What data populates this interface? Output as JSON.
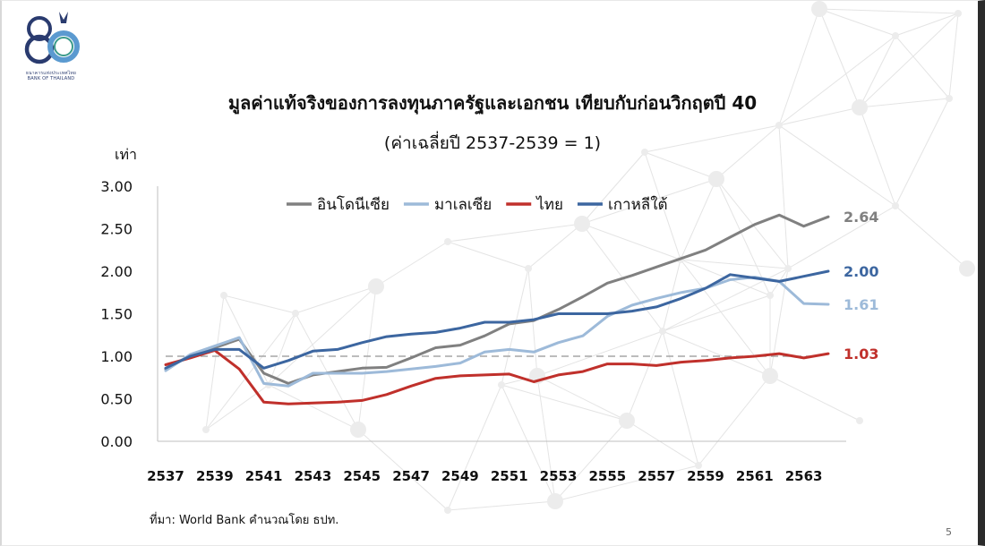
{
  "header": {
    "logo_text": "ธนาคารแห่งประเทศไทย",
    "logo_text_en": "BANK OF THAILAND",
    "logo_number": "80"
  },
  "title": "มูลค่าแท้จริงของการลงทุนภาครัฐและเอกชน เทียบกับก่อนวิกฤตปี 40",
  "subtitle": "(ค่าเฉลี่ยปี 2537-2539 = 1)",
  "unit_label": "เท่า",
  "source": "ที่มา: World Bank คำนวณโดย ธปท.",
  "page_number": "5",
  "chart_data": {
    "type": "line",
    "x": [
      2537,
      2538,
      2539,
      2540,
      2541,
      2542,
      2543,
      2544,
      2545,
      2546,
      2547,
      2548,
      2549,
      2550,
      2551,
      2552,
      2553,
      2554,
      2555,
      2556,
      2557,
      2558,
      2559,
      2560,
      2561,
      2562,
      2563,
      2564
    ],
    "x_tick_labels": [
      "2537",
      "2539",
      "2541",
      "2543",
      "2545",
      "2547",
      "2549",
      "2551",
      "2553",
      "2555",
      "2557",
      "2559",
      "2561",
      "2563"
    ],
    "ylim": [
      0,
      3
    ],
    "y_tick_labels": [
      "0.00",
      "0.50",
      "1.00",
      "1.50",
      "2.00",
      "2.50",
      "3.00"
    ],
    "reference_line": 1.0,
    "legend_position": "top",
    "series": [
      {
        "name": "อินโดนีเซีย",
        "color": "#808080",
        "end_label": "2.64",
        "values": [
          0.85,
          1.01,
          1.1,
          1.2,
          0.8,
          0.68,
          0.78,
          0.82,
          0.86,
          0.87,
          0.98,
          1.1,
          1.13,
          1.24,
          1.38,
          1.42,
          1.55,
          1.7,
          1.86,
          1.95,
          2.05,
          2.15,
          2.25,
          2.4,
          2.55,
          2.66,
          2.53,
          2.64
        ]
      },
      {
        "name": "มาเลเซีย",
        "color": "#9dbad9",
        "end_label": "1.61",
        "values": [
          0.83,
          1.02,
          1.12,
          1.22,
          0.68,
          0.65,
          0.8,
          0.8,
          0.8,
          0.82,
          0.85,
          0.88,
          0.92,
          1.05,
          1.08,
          1.05,
          1.16,
          1.24,
          1.47,
          1.6,
          1.68,
          1.75,
          1.8,
          1.9,
          1.93,
          1.88,
          1.62,
          1.61
        ]
      },
      {
        "name": "ไทย",
        "color": "#c0302b",
        "end_label": "1.03",
        "values": [
          0.9,
          0.98,
          1.07,
          0.85,
          0.46,
          0.44,
          0.45,
          0.46,
          0.48,
          0.55,
          0.65,
          0.74,
          0.77,
          0.78,
          0.79,
          0.7,
          0.78,
          0.82,
          0.91,
          0.91,
          0.89,
          0.93,
          0.95,
          0.98,
          1.0,
          1.03,
          0.98,
          1.03
        ]
      },
      {
        "name": "เกาหลีใต้",
        "color": "#3c66a0",
        "end_label": "2.00",
        "values": [
          0.86,
          1.0,
          1.08,
          1.08,
          0.86,
          0.95,
          1.06,
          1.08,
          1.16,
          1.23,
          1.26,
          1.28,
          1.33,
          1.4,
          1.4,
          1.43,
          1.5,
          1.5,
          1.5,
          1.53,
          1.58,
          1.68,
          1.8,
          1.96,
          1.92,
          1.88,
          1.94,
          2.0
        ]
      }
    ]
  }
}
